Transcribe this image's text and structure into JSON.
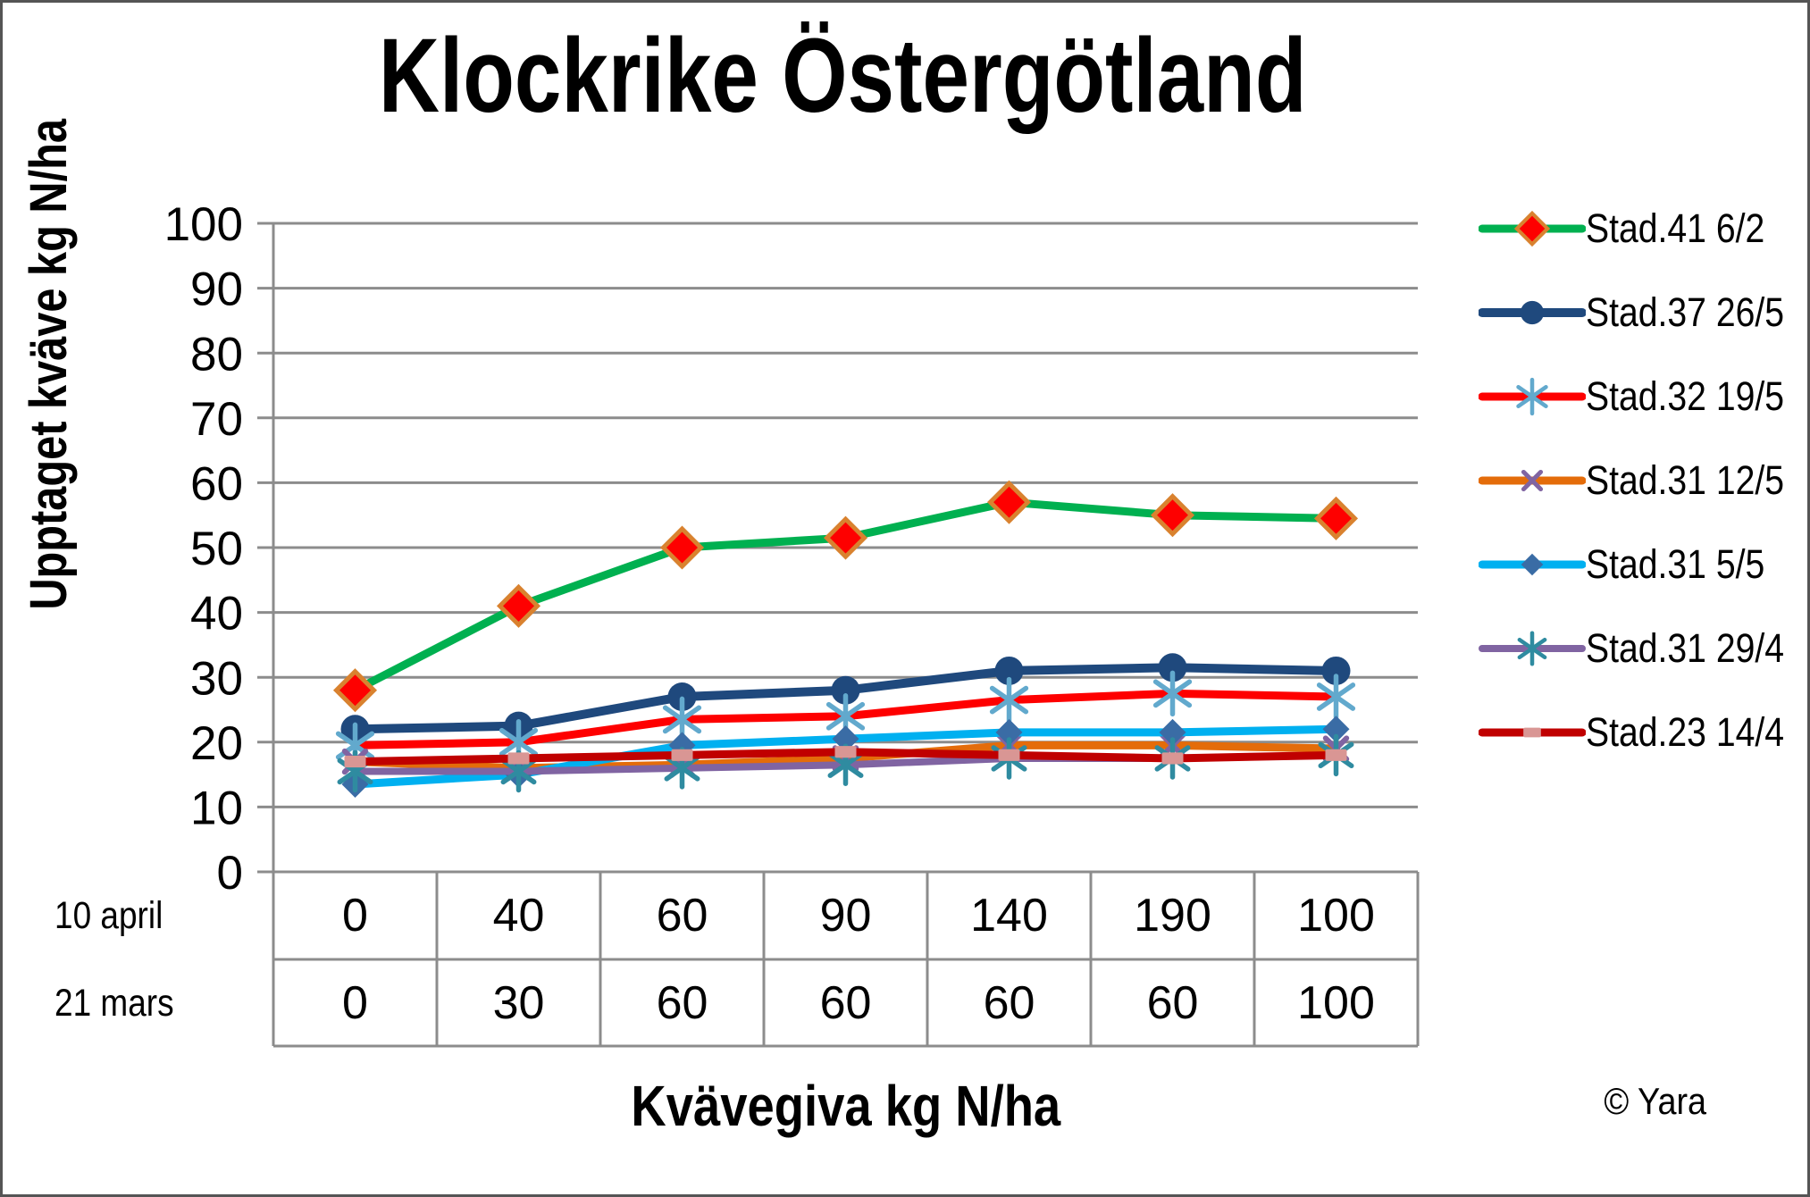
{
  "watermark": {
    "text": "© Yara"
  },
  "chart_data": {
    "type": "line",
    "title": "Klockrike Östergötland",
    "ylabel": "Upptaget kväve kg N/ha",
    "xlabel": "Kvävegiva kg N/ha",
    "ylim": [
      0,
      100
    ],
    "ystep": 10,
    "grid": true,
    "legend_position": "right",
    "categories": [
      "0",
      "40",
      "60",
      "90",
      "140",
      "190",
      "100"
    ],
    "x_axis_table": {
      "row_labels": [
        "10 april",
        "21 mars"
      ],
      "rows": [
        [
          "0",
          "40",
          "60",
          "90",
          "140",
          "190",
          "100"
        ],
        [
          "0",
          "30",
          "60",
          "60",
          "60",
          "60",
          "100"
        ]
      ]
    },
    "series": [
      {
        "name": "Stad.41 6/2",
        "color": "#00B050",
        "line_width": 9,
        "marker": "diamond",
        "marker_size": 21,
        "marker_color": "#FE0000",
        "marker_stroke": "#D9822F",
        "values": [
          28,
          41,
          50,
          51.5,
          57,
          55,
          54.5
        ]
      },
      {
        "name": "Stad.37 26/5",
        "color": "#1F497D",
        "line_width": 10,
        "marker": "circle",
        "marker_size": 16,
        "marker_color": "#1F497D",
        "values": [
          22,
          22.5,
          27,
          28,
          31,
          31.5,
          31
        ]
      },
      {
        "name": "Stad.32 19/5",
        "color": "#FE0000",
        "line_width": 9,
        "marker": "asterisk",
        "marker_size": 23,
        "marker_color": "#62A9CD",
        "values": [
          19.5,
          20,
          23.5,
          24,
          26.5,
          27.5,
          27
        ]
      },
      {
        "name": "Stad.31 12/5",
        "color": "#E46C0A",
        "line_width": 9,
        "marker": "x",
        "marker_size": 15,
        "marker_color": "#8064A2",
        "values": [
          17,
          16,
          16.5,
          17.5,
          19.5,
          19.5,
          19
        ]
      },
      {
        "name": "Stad.31 5/5",
        "color": "#00B0F0",
        "line_width": 9,
        "marker": "diamond",
        "marker_size": 15,
        "marker_color": "#3A6CA5",
        "values": [
          13.5,
          15,
          19.5,
          20.5,
          21.5,
          21.5,
          22
        ]
      },
      {
        "name": "Stad.31 29/4",
        "color": "#8064A2",
        "line_width": 8,
        "marker": "asterisk",
        "marker_size": 21,
        "marker_color": "#2F8BA0",
        "values": [
          15.5,
          15.5,
          16,
          16.5,
          17.5,
          17.5,
          18
        ]
      },
      {
        "name": "Stad.23 14/4",
        "color": "#C00000",
        "line_width": 9,
        "marker": "square",
        "marker_size": 12,
        "marker_color": "#D99694",
        "values": [
          17,
          17.5,
          18,
          18.5,
          18,
          17.5,
          18
        ]
      }
    ]
  }
}
